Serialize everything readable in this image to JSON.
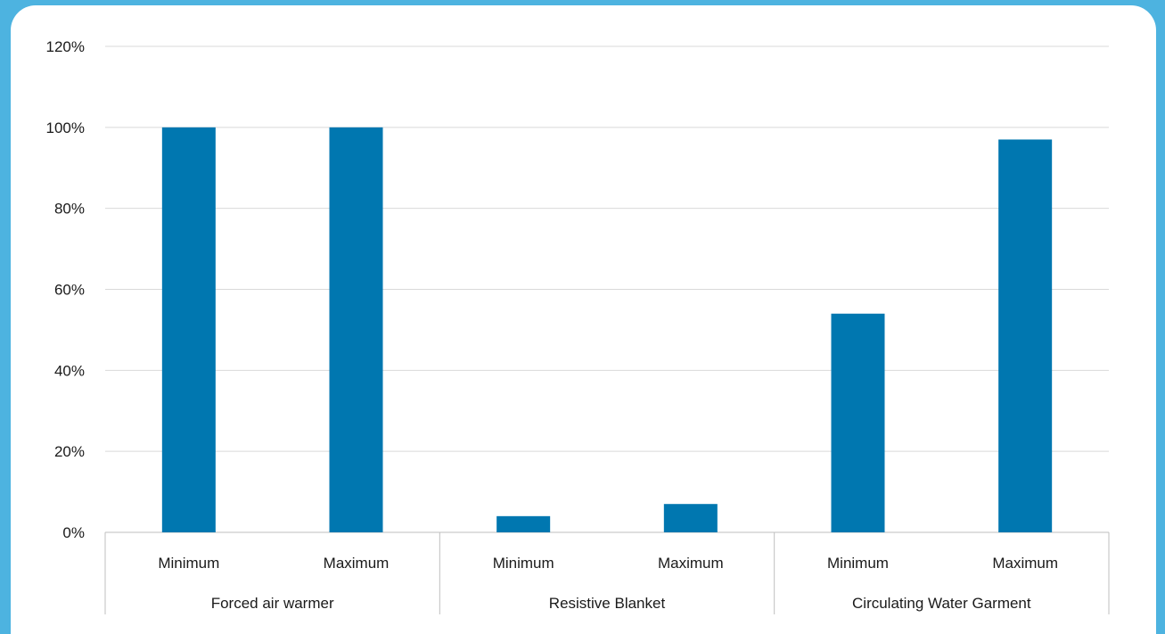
{
  "colors": {
    "frame": "#4db3e0",
    "bar": "#0077b0",
    "grid": "#d9d9d9",
    "axis": "#bfbfbf"
  },
  "chart_data": {
    "type": "bar",
    "title": "",
    "xlabel": "",
    "ylabel": "",
    "ylim": [
      0,
      1.2
    ],
    "y_ticks": [
      "0%",
      "20%",
      "40%",
      "60%",
      "80%",
      "100%",
      "120%"
    ],
    "grid": true,
    "groups": [
      {
        "label": "Forced air warmer",
        "categories": [
          "Minimum",
          "Maximum"
        ],
        "values": [
          1.0,
          1.0
        ]
      },
      {
        "label": "Resistive Blanket",
        "categories": [
          "Minimum",
          "Maximum"
        ],
        "values": [
          0.04,
          0.07
        ]
      },
      {
        "label": "Circulating Water Garment",
        "categories": [
          "Minimum",
          "Maximum"
        ],
        "values": [
          0.54,
          0.97
        ]
      }
    ]
  }
}
